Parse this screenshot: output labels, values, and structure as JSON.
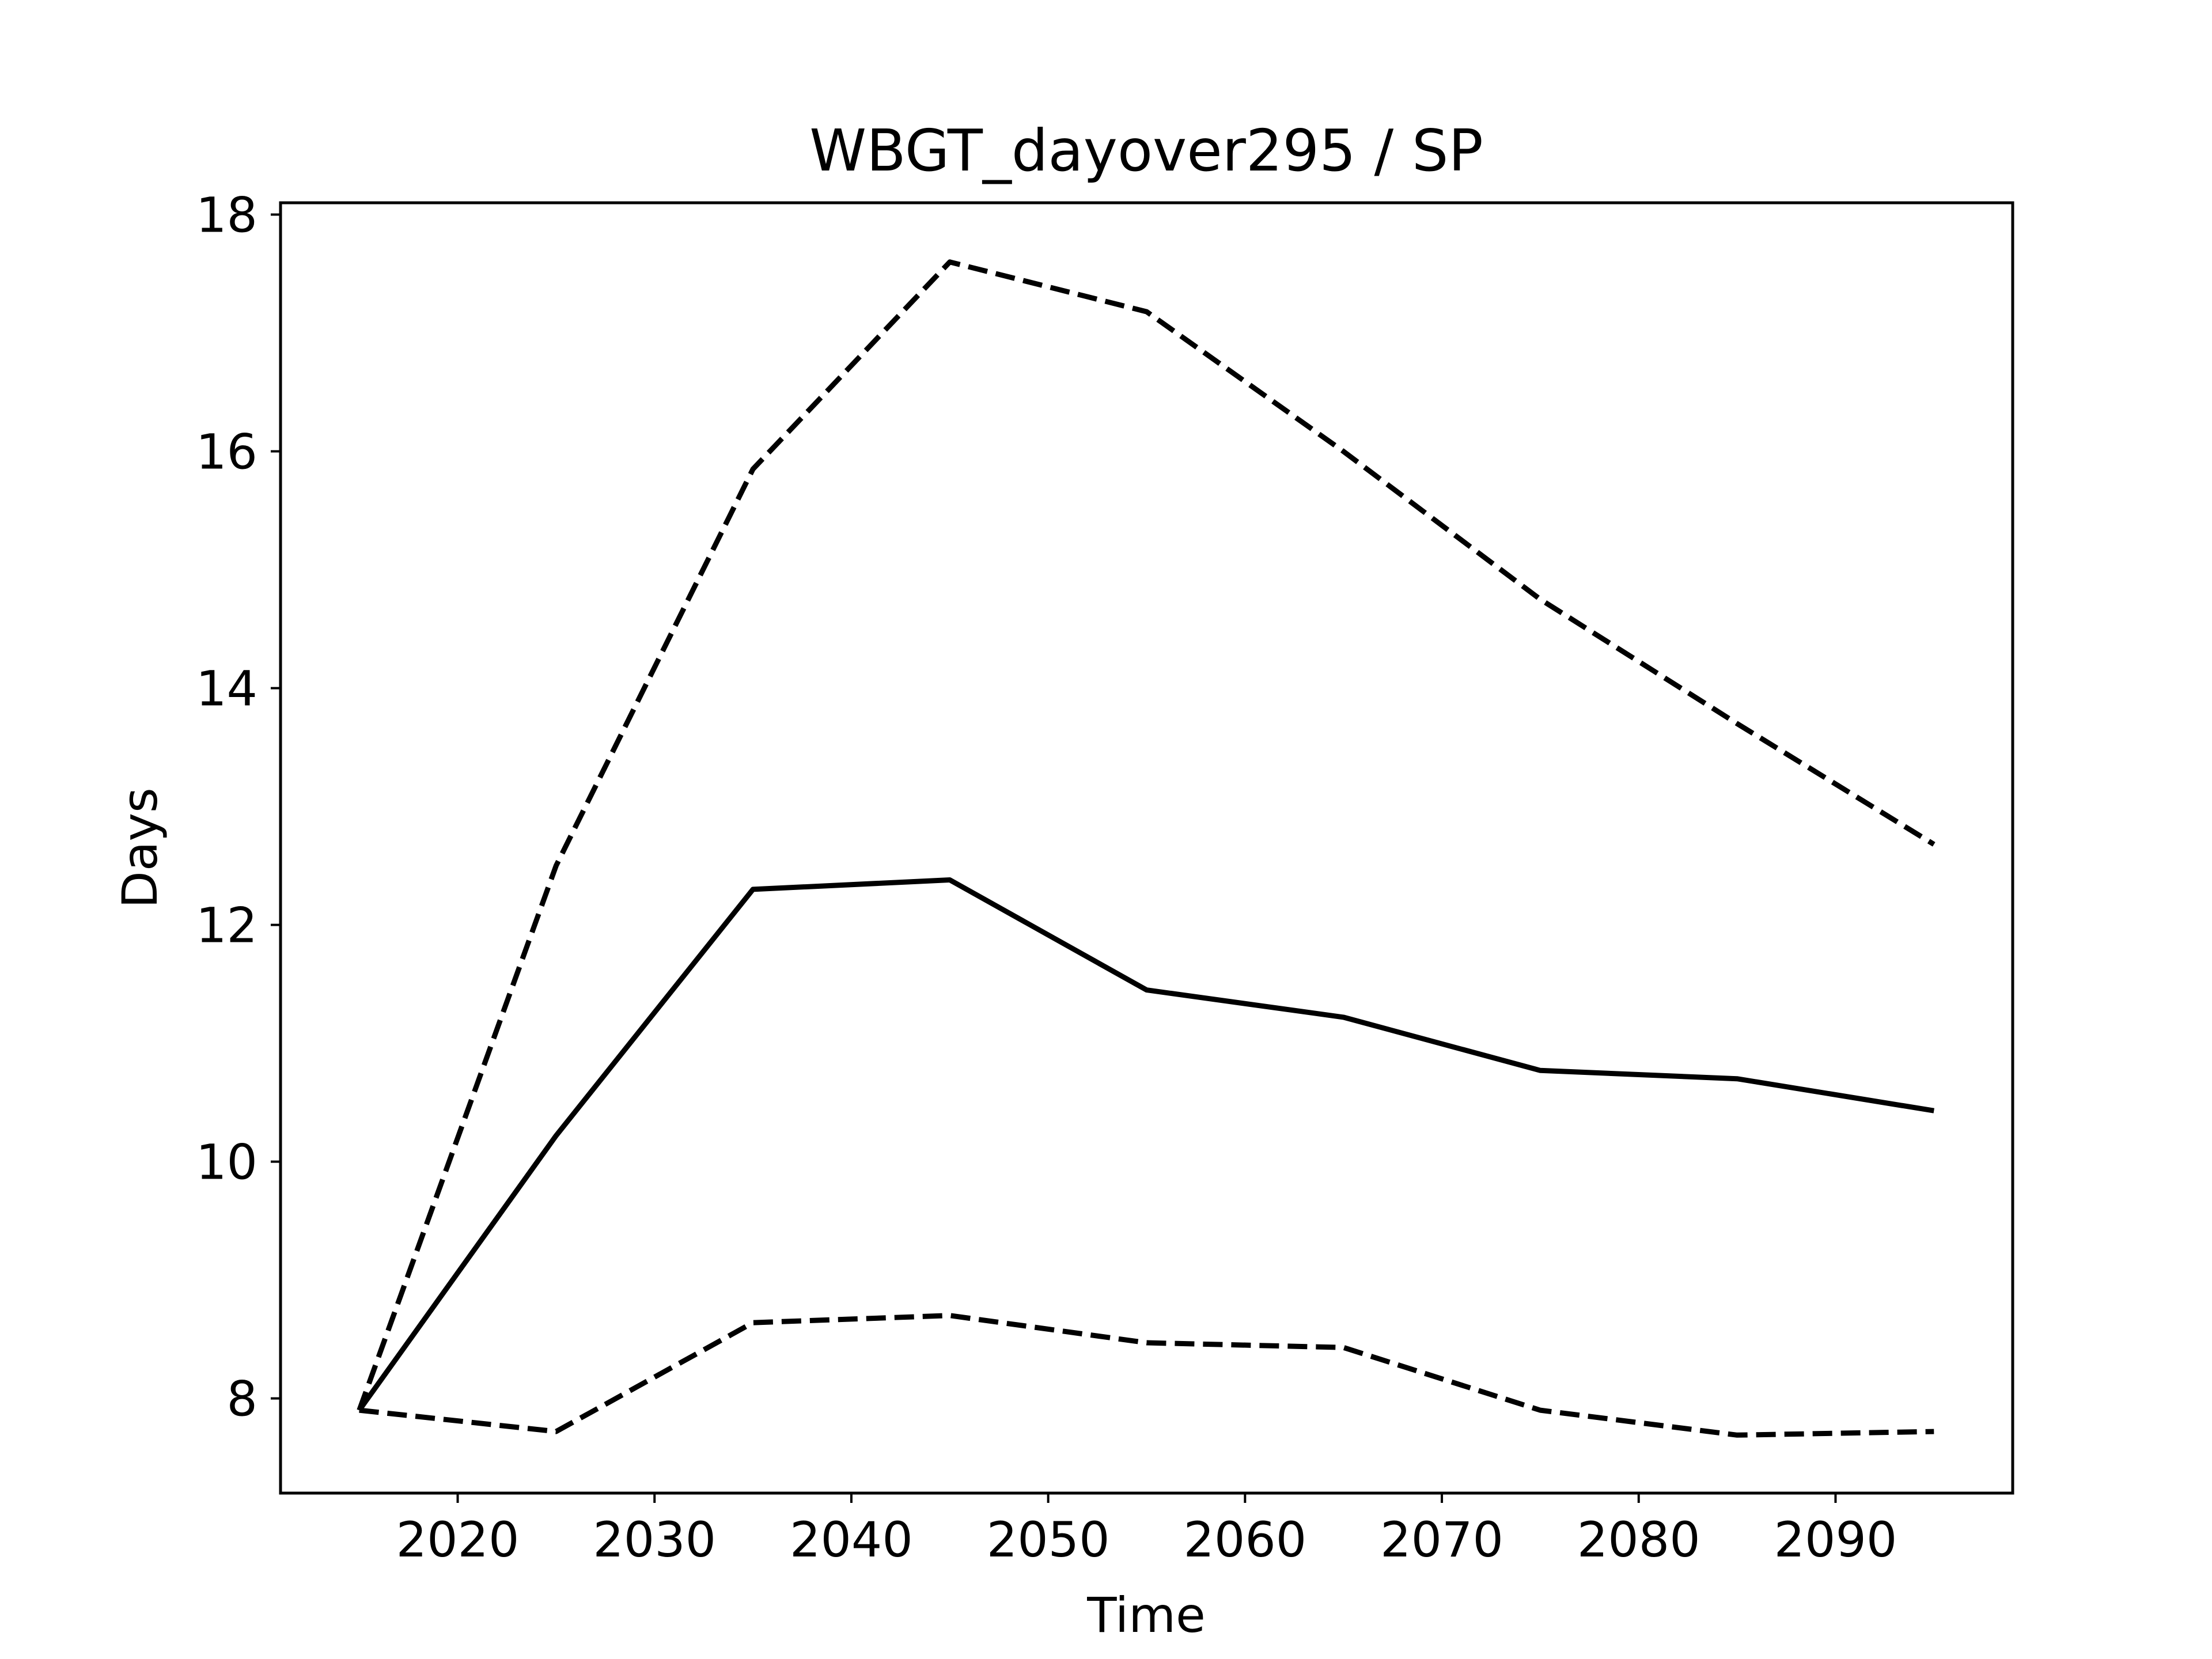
{
  "chart_data": {
    "type": "line",
    "title": "WBGT_dayover295 / SP",
    "xlabel": "Time",
    "ylabel": "Days",
    "xlim": [
      2011,
      2099
    ],
    "ylim": [
      7.2,
      18.1
    ],
    "xticks": [
      2020,
      2030,
      2040,
      2050,
      2060,
      2070,
      2080,
      2090
    ],
    "yticks": [
      8,
      10,
      12,
      14,
      16,
      18
    ],
    "grid": false,
    "x": [
      2015,
      2025,
      2035,
      2045,
      2055,
      2065,
      2075,
      2085,
      2095
    ],
    "series": [
      {
        "style": "dashed",
        "color": "#000000",
        "values": [
          7.9,
          12.5,
          15.85,
          17.6,
          17.18,
          16.0,
          14.75,
          13.7,
          12.68
        ]
      },
      {
        "style": "solid",
        "color": "#000000",
        "values": [
          7.9,
          10.22,
          12.3,
          12.38,
          11.45,
          11.22,
          10.77,
          10.7,
          10.43
        ]
      },
      {
        "style": "dashed",
        "color": "#000000",
        "values": [
          7.9,
          7.72,
          8.64,
          8.7,
          8.47,
          8.43,
          7.9,
          7.69,
          7.72
        ]
      }
    ]
  }
}
